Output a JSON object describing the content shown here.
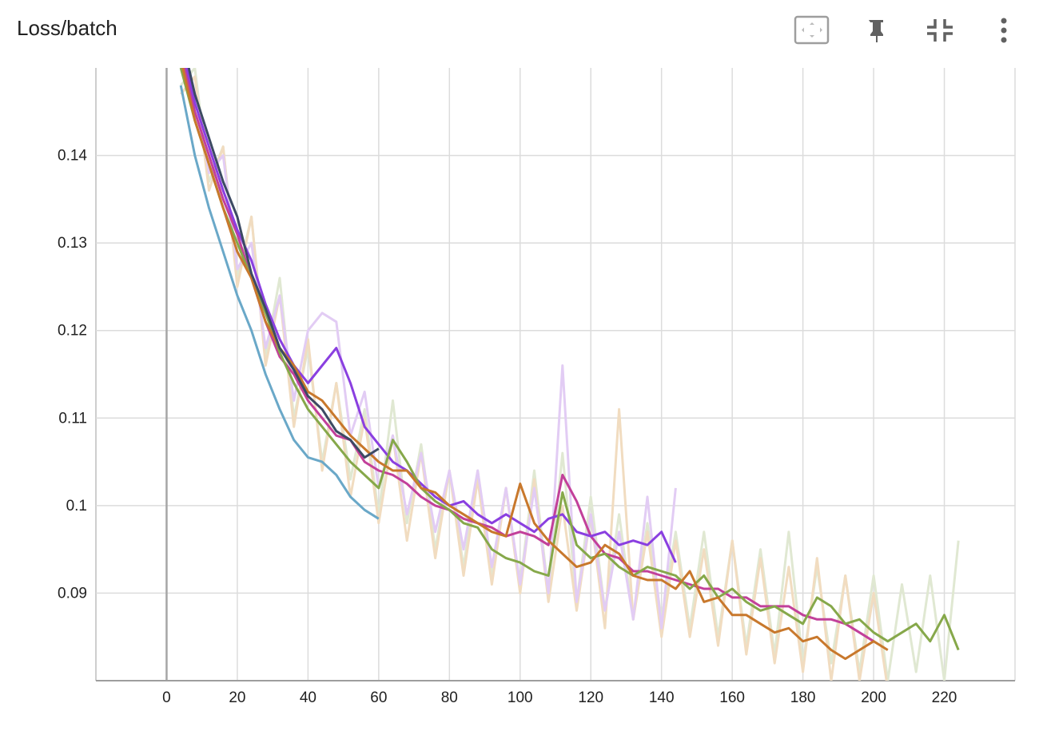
{
  "chart_data": {
    "type": "line",
    "title": "Loss/batch",
    "x": [
      4,
      8,
      12,
      16,
      20,
      24,
      28,
      32,
      36,
      40,
      44,
      48,
      52,
      56,
      60,
      64,
      68,
      72,
      76,
      80,
      84,
      88,
      92,
      96,
      100,
      104,
      108,
      112,
      116,
      120,
      124,
      128,
      132,
      136,
      140,
      144,
      148,
      152,
      156,
      160,
      164,
      168,
      172,
      176,
      180,
      184,
      188,
      192,
      196,
      200,
      204,
      208,
      212,
      216,
      220,
      224
    ],
    "xlim": [
      -20,
      240
    ],
    "xticks": [
      0,
      20,
      40,
      60,
      80,
      100,
      120,
      140,
      160,
      180,
      200,
      220
    ],
    "ylim": [
      0.08,
      0.15
    ],
    "yticks": [
      0.09,
      0.1,
      0.11,
      0.12,
      0.13,
      0.14
    ],
    "grid": true,
    "series": [
      {
        "color": "#e0e8d2",
        "values": [
          0.148,
          0.15,
          0.137,
          0.141,
          0.126,
          0.133,
          0.117,
          0.126,
          0.11,
          0.118,
          0.105,
          0.114,
          0.103,
          0.111,
          0.099,
          0.112,
          0.098,
          0.107,
          0.095,
          0.104,
          0.093,
          0.104,
          0.092,
          0.102,
          0.091,
          0.104,
          0.09,
          0.106,
          0.089,
          0.101,
          0.088,
          0.099,
          0.087,
          0.098,
          0.087,
          0.097,
          0.086,
          0.097,
          0.085,
          0.096,
          0.084,
          0.095,
          0.083,
          0.097,
          0.082,
          0.093,
          0.082,
          0.092,
          0.081,
          0.092,
          0.08,
          0.091,
          0.081,
          0.092,
          0.08,
          0.096
        ]
      },
      {
        "color": "#f1dcc0",
        "values": [
          0.147,
          0.149,
          0.136,
          0.141,
          0.125,
          0.133,
          0.116,
          0.124,
          0.109,
          0.119,
          0.104,
          0.114,
          0.101,
          0.11,
          0.098,
          0.108,
          0.096,
          0.106,
          0.094,
          0.104,
          0.092,
          0.103,
          0.091,
          0.102,
          0.09,
          0.103,
          0.089,
          0.1,
          0.088,
          0.099,
          0.086,
          0.111,
          0.087,
          0.097,
          0.085,
          0.096,
          0.085,
          0.095,
          0.084,
          0.096,
          0.083,
          0.094,
          0.082,
          0.093,
          0.081,
          0.094,
          0.08,
          0.092,
          0.08,
          0.09,
          0.079,
          null,
          null,
          null,
          null,
          null
        ]
      },
      {
        "color": "#e2ccf4",
        "values": [
          0.15,
          0.147,
          0.138,
          0.14,
          0.127,
          0.13,
          0.118,
          0.124,
          0.112,
          0.12,
          0.122,
          0.121,
          0.108,
          0.113,
          0.102,
          0.108,
          0.099,
          0.106,
          0.097,
          0.104,
          0.095,
          0.104,
          0.093,
          0.102,
          0.091,
          0.102,
          0.09,
          0.116,
          0.089,
          0.099,
          0.088,
          0.097,
          0.087,
          0.101,
          0.086,
          0.102,
          null,
          null,
          null,
          null,
          null,
          null,
          null,
          null,
          null,
          null,
          null,
          null,
          null,
          null,
          null,
          null,
          null,
          null,
          null,
          null
        ]
      },
      {
        "color": "#6aa8c8",
        "values": [
          0.148,
          0.14,
          0.134,
          0.129,
          0.124,
          0.12,
          0.115,
          0.111,
          0.1075,
          0.1055,
          0.105,
          0.1035,
          0.101,
          0.0995,
          0.0985,
          null,
          null,
          null,
          null,
          null,
          null,
          null,
          null,
          null,
          null,
          null,
          null,
          null,
          null,
          null,
          null,
          null,
          null,
          null,
          null,
          null,
          null,
          null,
          null,
          null,
          null,
          null,
          null,
          null,
          null,
          null,
          null,
          null,
          null,
          null,
          null,
          null,
          null,
          null,
          null,
          null
        ]
      },
      {
        "color": "#c2409a",
        "values": [
          0.152,
          0.145,
          0.14,
          0.135,
          0.131,
          0.126,
          0.121,
          0.117,
          0.115,
          0.112,
          0.11,
          0.108,
          0.1075,
          0.105,
          0.104,
          0.1035,
          0.1025,
          0.101,
          0.1,
          0.0995,
          0.0985,
          0.098,
          0.0975,
          0.0965,
          0.097,
          0.0965,
          0.0955,
          0.1035,
          0.1005,
          0.0965,
          0.0945,
          0.094,
          0.0925,
          0.0925,
          0.092,
          0.0915,
          0.091,
          0.0905,
          0.0905,
          0.0895,
          0.0895,
          0.0885,
          0.0885,
          0.0885,
          0.0875,
          0.087,
          0.087,
          0.0865,
          0.0855,
          0.0845,
          null,
          null,
          null,
          null,
          null,
          null
        ]
      },
      {
        "color": "#8a3fe0",
        "values": [
          0.153,
          0.146,
          0.141,
          0.136,
          0.1315,
          0.128,
          0.123,
          0.119,
          0.116,
          0.114,
          0.116,
          0.118,
          0.114,
          0.109,
          0.107,
          0.105,
          0.104,
          0.1025,
          0.101,
          0.1,
          0.1005,
          0.099,
          0.098,
          0.099,
          0.098,
          0.097,
          0.0985,
          0.099,
          0.097,
          0.0965,
          0.097,
          0.0955,
          0.096,
          0.0955,
          0.097,
          0.0935,
          null,
          null,
          null,
          null,
          null,
          null,
          null,
          null,
          null,
          null,
          null,
          null,
          null,
          null,
          null,
          null,
          null,
          null,
          null,
          null
        ]
      },
      {
        "color": "#86a84a",
        "values": [
          0.15,
          0.144,
          0.139,
          0.134,
          0.13,
          0.126,
          0.122,
          0.1175,
          0.114,
          0.111,
          0.109,
          0.107,
          0.105,
          0.1035,
          0.102,
          0.1075,
          0.105,
          0.102,
          0.1005,
          0.0995,
          0.098,
          0.0975,
          0.095,
          0.094,
          0.0935,
          0.0925,
          0.092,
          0.1015,
          0.0955,
          0.094,
          0.0945,
          0.093,
          0.092,
          0.093,
          0.0925,
          0.092,
          0.0905,
          0.092,
          0.0895,
          0.0905,
          0.089,
          0.088,
          0.0885,
          0.0875,
          0.0865,
          0.0895,
          0.0885,
          0.0865,
          0.087,
          0.0855,
          0.0845,
          0.0855,
          0.0865,
          0.0845,
          0.0875,
          0.0835
        ]
      },
      {
        "color": "#c8782c",
        "values": [
          0.151,
          0.144,
          0.139,
          0.134,
          0.129,
          0.126,
          0.121,
          0.118,
          0.116,
          0.113,
          0.112,
          0.11,
          0.108,
          0.1065,
          0.105,
          0.104,
          0.104,
          0.102,
          0.1015,
          0.1,
          0.099,
          0.098,
          0.097,
          0.0965,
          0.1025,
          0.098,
          0.096,
          0.0945,
          0.093,
          0.0935,
          0.0955,
          0.0945,
          0.092,
          0.0915,
          0.0915,
          0.0905,
          0.0925,
          0.089,
          0.0895,
          0.0875,
          0.0875,
          0.0865,
          0.0855,
          0.086,
          0.0845,
          0.085,
          0.0835,
          0.0825,
          0.0835,
          0.0845,
          0.0835,
          null,
          null,
          null,
          null,
          null
        ]
      },
      {
        "color": "#3c4a63",
        "values": [
          0.154,
          0.147,
          0.142,
          0.137,
          0.133,
          0.1265,
          0.1225,
          0.118,
          0.1155,
          0.1125,
          0.111,
          0.1085,
          0.1075,
          0.1055,
          0.1065,
          null,
          null,
          null,
          null,
          null,
          null,
          null,
          null,
          null,
          null,
          null,
          null,
          null,
          null,
          null,
          null,
          null,
          null,
          null,
          null,
          null,
          null,
          null,
          null,
          null,
          null,
          null,
          null,
          null,
          null,
          null,
          null,
          null,
          null,
          null,
          null,
          null,
          null,
          null,
          null,
          null
        ]
      }
    ]
  }
}
